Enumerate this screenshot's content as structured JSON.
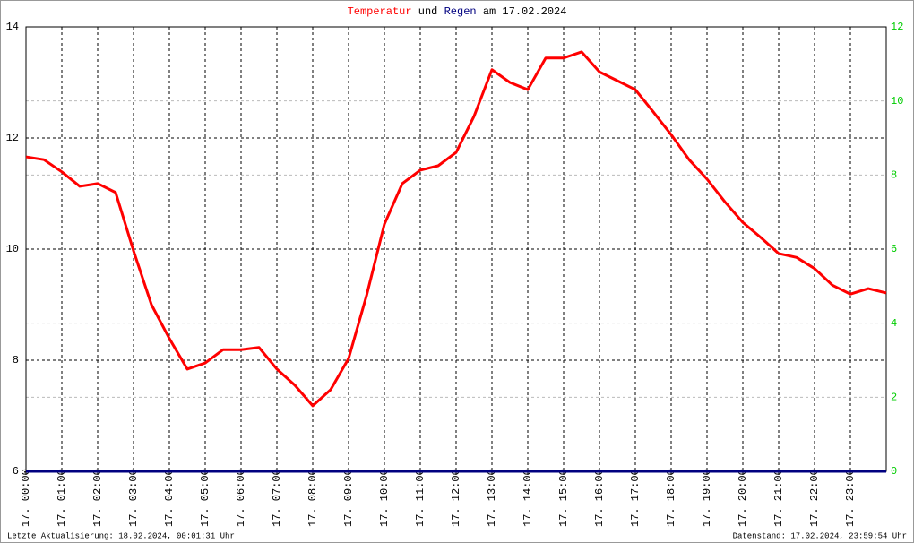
{
  "chart_data": {
    "type": "line",
    "title_connector": "und",
    "title_date": "am 17.02.2024",
    "footer_left": "Letzte Aktualisierung: 18.02.2024, 00:01:31 Uhr",
    "footer_right": "Datenstand: 17.02.2024, 23:59:54 Uhr",
    "x": [
      0,
      0.5,
      1,
      1.5,
      2,
      2.5,
      3,
      3.5,
      4,
      4.5,
      5,
      5.5,
      6,
      6.5,
      7,
      7.5,
      8,
      8.5,
      9,
      9.5,
      10,
      10.5,
      11,
      11.5,
      12,
      12.5,
      13,
      13.5,
      14,
      14.5,
      15,
      15.5,
      16,
      16.5,
      17,
      17.5,
      18,
      18.5,
      19,
      19.5,
      20,
      20.5,
      21,
      21.5,
      22,
      22.5,
      23,
      23.5,
      24
    ],
    "xlim": [
      0,
      24
    ],
    "xticks": [
      {
        "value": 0,
        "label": "17. 00:00"
      },
      {
        "value": 1,
        "label": "17. 01:00"
      },
      {
        "value": 2,
        "label": "17. 02:00"
      },
      {
        "value": 3,
        "label": "17. 03:00"
      },
      {
        "value": 4,
        "label": "17. 04:00"
      },
      {
        "value": 5,
        "label": "17. 05:00"
      },
      {
        "value": 6,
        "label": "17. 06:00"
      },
      {
        "value": 7,
        "label": "17. 07:00"
      },
      {
        "value": 8,
        "label": "17. 08:00"
      },
      {
        "value": 9,
        "label": "17. 09:00"
      },
      {
        "value": 10,
        "label": "17. 10:00"
      },
      {
        "value": 11,
        "label": "17. 11:00"
      },
      {
        "value": 12,
        "label": "17. 12:00"
      },
      {
        "value": 13,
        "label": "17. 13:00"
      },
      {
        "value": 14,
        "label": "17. 14:00"
      },
      {
        "value": 15,
        "label": "17. 15:00"
      },
      {
        "value": 16,
        "label": "17. 16:00"
      },
      {
        "value": 17,
        "label": "17. 17:00"
      },
      {
        "value": 18,
        "label": "17. 18:00"
      },
      {
        "value": 19,
        "label": "17. 19:00"
      },
      {
        "value": 20,
        "label": "17. 20:00"
      },
      {
        "value": 21,
        "label": "17. 21:00"
      },
      {
        "value": 22,
        "label": "17. 22:00"
      },
      {
        "value": 23,
        "label": "17. 23:00"
      }
    ],
    "ylim": [
      6,
      14
    ],
    "yticks": [
      6,
      8,
      10,
      12,
      14
    ],
    "y2lim": [
      0,
      12
    ],
    "y2ticks": [
      0,
      2,
      4,
      6,
      8,
      10,
      12
    ],
    "grid": true,
    "series": [
      {
        "name": "Temperatur",
        "color": "#ff0000",
        "values": [
          11.66,
          11.61,
          11.39,
          11.13,
          11.18,
          11.02,
          9.97,
          9.0,
          8.39,
          7.84,
          7.95,
          8.19,
          8.19,
          8.23,
          7.84,
          7.55,
          7.18,
          7.47,
          8.03,
          9.16,
          10.45,
          11.18,
          11.42,
          11.5,
          11.74,
          12.39,
          13.23,
          13.0,
          12.87,
          13.44,
          13.44,
          13.55,
          13.19,
          13.03,
          12.87,
          12.47,
          12.06,
          11.61,
          11.26,
          10.85,
          10.48,
          10.21,
          9.92,
          9.85,
          9.65,
          9.35,
          9.19,
          9.29,
          9.21
        ]
      },
      {
        "name": "Regen",
        "color": "#000080",
        "axis": "y2",
        "values": [
          0,
          0,
          0,
          0,
          0,
          0,
          0,
          0,
          0,
          0,
          0,
          0,
          0,
          0,
          0,
          0,
          0,
          0,
          0,
          0,
          0,
          0,
          0,
          0,
          0,
          0,
          0,
          0,
          0,
          0,
          0,
          0,
          0,
          0,
          0,
          0,
          0,
          0,
          0,
          0,
          0,
          0,
          0,
          0,
          0,
          0,
          0,
          0,
          0
        ]
      }
    ]
  }
}
